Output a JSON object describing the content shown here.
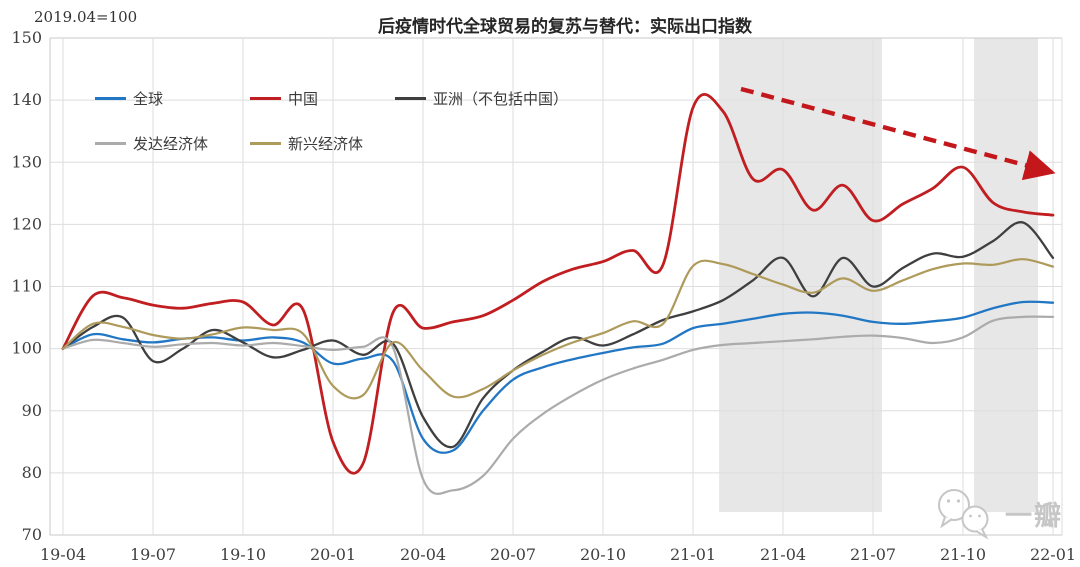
{
  "annotation": "2019.04=100",
  "title": "后疫情时代全球贸易的复苏与替代：实际出口指数",
  "watermark": "一瓣",
  "colors": {
    "grid": "#dedede",
    "border": "#c9c9c9",
    "band": "#e7e7e7",
    "tick_text": "#3f3f3f",
    "arrow": "#c3171b",
    "watermark": "#c6c6c6"
  },
  "chart_data": {
    "type": "line",
    "title": "后疫情时代全球贸易的复苏与替代：实际出口指数",
    "index_note": "2019.04=100",
    "x_tick_labels": [
      "19-04",
      "19-07",
      "19-10",
      "20-01",
      "20-04",
      "20-07",
      "20-10",
      "21-01",
      "21-04",
      "21-07",
      "21-10",
      "22-01"
    ],
    "x_months_per_tick": 3,
    "y_axis": {
      "min": 70,
      "max": 150,
      "step": 10
    },
    "grid": true,
    "legend_position": "top-left, two rows, no border",
    "months": [
      "19-04",
      "19-05",
      "19-06",
      "19-07",
      "19-08",
      "19-09",
      "19-10",
      "19-11",
      "19-12",
      "20-01",
      "20-02",
      "20-03",
      "20-04",
      "20-05",
      "20-06",
      "20-07",
      "20-08",
      "20-09",
      "20-10",
      "20-11",
      "20-12",
      "21-01",
      "21-02",
      "21-03",
      "21-04",
      "21-05",
      "21-06",
      "21-07",
      "21-08",
      "21-09",
      "21-10",
      "21-11",
      "21-12",
      "22-01"
    ],
    "series": [
      {
        "id": "global",
        "name": "全球",
        "color": "#2277c4",
        "width": 2.3,
        "values": [
          100,
          102.3,
          101.5,
          101.0,
          101.6,
          101.8,
          101.3,
          101.8,
          101.0,
          97.6,
          98.4,
          98.0,
          85.5,
          83.6,
          90.0,
          95.0,
          97.0,
          98.3,
          99.3,
          100.2,
          100.8,
          103.3,
          104.0,
          104.8,
          105.6,
          105.8,
          105.3,
          104.3,
          104.0,
          104.4,
          105.0,
          106.5,
          107.5,
          107.4
        ]
      },
      {
        "id": "china",
        "name": "中国",
        "color": "#c11e22",
        "width": 2.8,
        "values": [
          100,
          108.5,
          108.2,
          107.0,
          106.5,
          107.3,
          107.5,
          103.8,
          106.3,
          85.0,
          81.5,
          105.8,
          103.3,
          104.3,
          105.3,
          107.8,
          110.8,
          112.8,
          114.0,
          115.8,
          113.5,
          138.8,
          138.2,
          127.3,
          128.8,
          122.3,
          126.3,
          120.6,
          123.3,
          125.8,
          129.2,
          123.5,
          122.0,
          121.5
        ]
      },
      {
        "id": "asia-ex-china",
        "name": "亚洲（不包括中国）",
        "color": "#3f3f3f",
        "width": 2.3,
        "values": [
          100,
          103.5,
          105.0,
          98.0,
          100.0,
          103.0,
          101.0,
          98.6,
          99.8,
          101.3,
          99.0,
          100.8,
          89.0,
          84.2,
          92.0,
          96.5,
          99.5,
          101.8,
          100.5,
          102.3,
          104.6,
          106.0,
          107.8,
          111.0,
          114.6,
          108.4,
          114.6,
          110.0,
          113.0,
          115.3,
          114.8,
          117.3,
          120.3,
          114.6
        ]
      },
      {
        "id": "developed",
        "name": "发达经济体",
        "color": "#ababab",
        "width": 2.2,
        "values": [
          100,
          101.4,
          100.9,
          100.3,
          100.7,
          100.9,
          100.5,
          100.9,
          100.4,
          99.8,
          100.3,
          100.2,
          79.0,
          77.2,
          79.5,
          85.5,
          89.5,
          92.5,
          95.0,
          96.8,
          98.2,
          99.8,
          100.6,
          100.9,
          101.2,
          101.5,
          101.9,
          102.1,
          101.7,
          100.9,
          101.8,
          104.5,
          105.1,
          105.1
        ]
      },
      {
        "id": "emerging",
        "name": "新兴经济体",
        "color": "#ae9a5b",
        "width": 2.2,
        "values": [
          100,
          104.0,
          103.5,
          102.2,
          101.6,
          102.3,
          103.4,
          103.0,
          102.4,
          94.0,
          92.5,
          101.0,
          96.5,
          92.3,
          93.5,
          96.5,
          99.0,
          101.0,
          102.5,
          104.4,
          104.0,
          113.3,
          113.6,
          112.0,
          110.3,
          109.0,
          111.3,
          109.3,
          111.0,
          112.8,
          113.7,
          113.5,
          114.4,
          113.2
        ]
      }
    ],
    "shaded_bands": [
      {
        "from_month": 21.87,
        "to_month": 27.3,
        "note": "2021-02 to 2021-07"
      },
      {
        "from_month": 30.37,
        "to_month": 32.5,
        "note": "2021-10 to 2021-12"
      }
    ],
    "trend_arrow": {
      "from": {
        "month": 22.6,
        "value": 141.8
      },
      "to": {
        "month": 32.8,
        "value": 128.6
      },
      "style": "dashed",
      "color": "#c3171b"
    }
  }
}
